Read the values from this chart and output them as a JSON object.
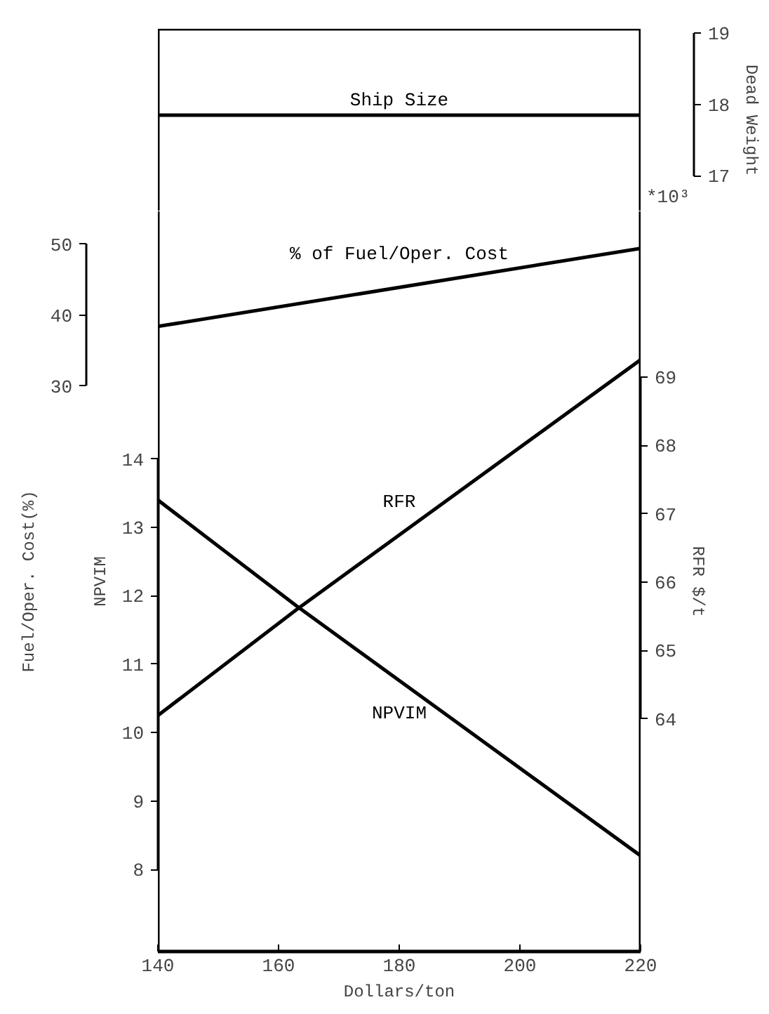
{
  "chart_data": [
    {
      "type": "line",
      "ylabel": "Dead Weight",
      "xlim": [
        140,
        220
      ],
      "ylim": [
        16.5,
        19.06
      ],
      "yticks": [
        17,
        18,
        19
      ],
      "tick_labels": "y",
      "series": [
        {
          "name": "Ship Size",
          "color": "#000000",
          "x": [
            140,
            220
          ],
          "values": [
            17.85,
            17.85
          ]
        }
      ],
      "annotations": [
        "*10³"
      ]
    },
    {
      "type": "line",
      "xlabel": "Dollars/ton",
      "ylabel": "NPVIM",
      "y2label": "Fuel/Oper. Cost(%)",
      "y3label": "RFR $/t",
      "xlim": [
        140,
        220
      ],
      "xticks": [
        140,
        160,
        180,
        200,
        220
      ],
      "ylim": [
        6.8,
        17.62
      ],
      "yticks": [
        8,
        9,
        10,
        11,
        12,
        13,
        14
      ],
      "y2lim": [
        -49.6,
        54.6
      ],
      "y2ticks": [
        30,
        40,
        50
      ],
      "y3lim": [
        60.6,
        71.42
      ],
      "y3ticks": [
        64,
        65,
        66,
        67,
        68,
        69
      ],
      "series": [
        {
          "name": "% of Fuel/Oper. Cost",
          "color": "#000000",
          "axis": "y2",
          "x": [
            140,
            220
          ],
          "values": [
            38.4,
            49.4
          ]
        },
        {
          "name": "RFR",
          "color": "#000000",
          "axis": "y3",
          "x": [
            140,
            163,
            220
          ],
          "values": [
            64.05,
            65.6,
            69.25
          ]
        },
        {
          "name": "NPVIM",
          "color": "#000000",
          "x": [
            140,
            163,
            220
          ],
          "values": [
            13.4,
            11.85,
            8.2
          ]
        }
      ]
    }
  ]
}
